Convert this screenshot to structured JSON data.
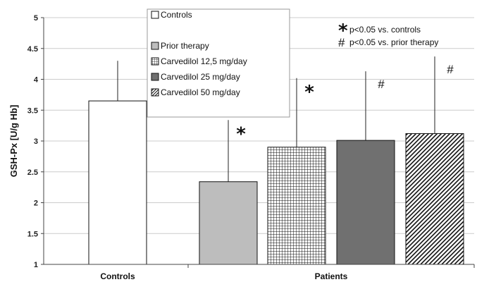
{
  "chart_data": {
    "type": "bar",
    "xlabel": "",
    "ylabel": "GSH-Px [U/g Hb]",
    "ylim": [
      1,
      5
    ],
    "yticks": [
      "1",
      "1.5",
      "2",
      "2.5",
      "3",
      "3.5",
      "4",
      "4.5",
      "5"
    ],
    "groups": [
      "Controls",
      "Patients"
    ],
    "series": [
      {
        "name": "Controls",
        "group": "Controls",
        "value": 3.65,
        "error": 0.65,
        "fill": "white",
        "marker": ""
      },
      {
        "name": "Prior therapy",
        "group": "Patients",
        "value": 2.34,
        "error": 1.0,
        "fill": "light-gray",
        "marker": "*"
      },
      {
        "name": "Carvedilol 12,5 mg/day",
        "group": "Patients",
        "value": 2.9,
        "error": 1.12,
        "fill": "grid",
        "marker": "*"
      },
      {
        "name": "Carvedilol 25 mg/day",
        "group": "Patients",
        "value": 3.01,
        "error": 1.12,
        "fill": "dark-gray",
        "marker": "#"
      },
      {
        "name": "Carvedilol 50 mg/day",
        "group": "Patients",
        "value": 3.12,
        "error": 1.25,
        "fill": "diagonal-hatch",
        "marker": "#"
      }
    ],
    "legend_position": "top-center",
    "notes": [
      {
        "symbol": "*",
        "text": "p<0.05 vs. controls"
      },
      {
        "symbol": "#",
        "text": "p<0.05 vs. prior therapy"
      }
    ],
    "colors": {
      "light_gray": "#bdbdbd",
      "dark_gray": "#707070",
      "grid": "#cccccc",
      "axis": "#444444"
    }
  }
}
